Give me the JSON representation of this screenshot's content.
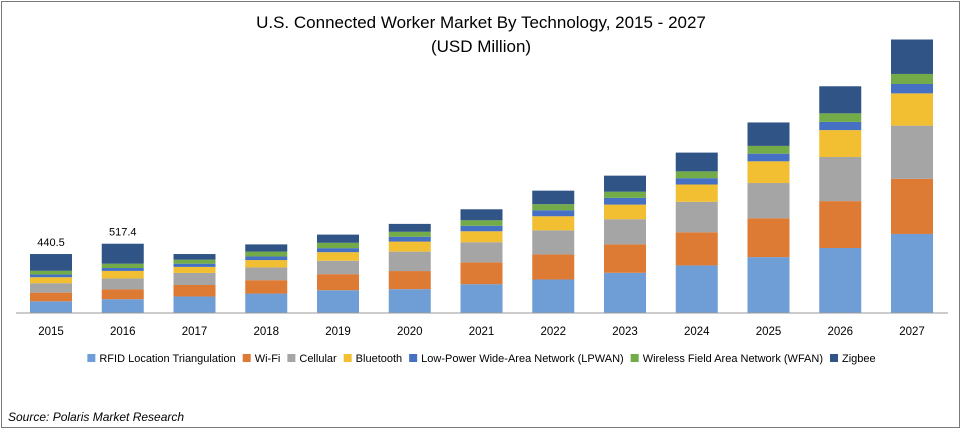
{
  "source": "Source: Polaris Market Research",
  "chart_data": {
    "type": "bar",
    "stacked": true,
    "title": "U.S. Connected Worker Market By Technology, 2015 - 2027",
    "subtitle": "(USD Million)",
    "xlabel": "",
    "ylabel": "",
    "ylim": [
      0,
      2000
    ],
    "grid": false,
    "legend_position": "bottom",
    "categories": [
      "2015",
      "2016",
      "2017",
      "2018",
      "2019",
      "2020",
      "2021",
      "2022",
      "2023",
      "2024",
      "2025",
      "2026",
      "2027"
    ],
    "totals_labels": [
      "440.5",
      "517.4",
      "",
      "",
      "",
      "",
      "",
      "",
      "",
      "",
      "",
      "",
      ""
    ],
    "series": [
      {
        "name": "RFID Location Triangulation",
        "color": "#6f9ed6",
        "values": [
          87,
          103,
          123,
          145,
          170,
          178,
          215,
          250,
          300,
          355,
          417,
          485,
          590
        ]
      },
      {
        "name": "Wi-Fi",
        "color": "#dd7a34",
        "values": [
          65,
          73,
          86,
          100,
          120,
          135,
          163,
          187,
          212,
          247,
          290,
          350,
          411
        ]
      },
      {
        "name": "Cellular",
        "color": "#a5a5a5",
        "values": [
          70,
          82,
          90,
          95,
          100,
          145,
          150,
          180,
          188,
          228,
          263,
          329,
          397
        ]
      },
      {
        "name": "Bluetooth",
        "color": "#f2bf33",
        "values": [
          45,
          56,
          45,
          55,
          64,
          75,
          82,
          105,
          109,
          129,
          162,
          201,
          241
        ]
      },
      {
        "name": "Low-Power Wide-Area Network (LPWAN)",
        "color": "#4570c4",
        "values": [
          20,
          22,
          24,
          27,
          30,
          36,
          41,
          45,
          50,
          47,
          57,
          61,
          70
        ]
      },
      {
        "name": "Wireless Field Area Network (WFAN)",
        "color": "#72ab47",
        "values": [
          28,
          32,
          30,
          36,
          40,
          37,
          41,
          45,
          46,
          51,
          58,
          64,
          75
        ]
      },
      {
        "name": "Zigbee",
        "color": "#2f5485",
        "values": [
          125,
          149,
          42,
          54,
          61,
          59,
          82,
          101,
          120,
          140,
          175,
          202,
          257
        ]
      }
    ]
  }
}
